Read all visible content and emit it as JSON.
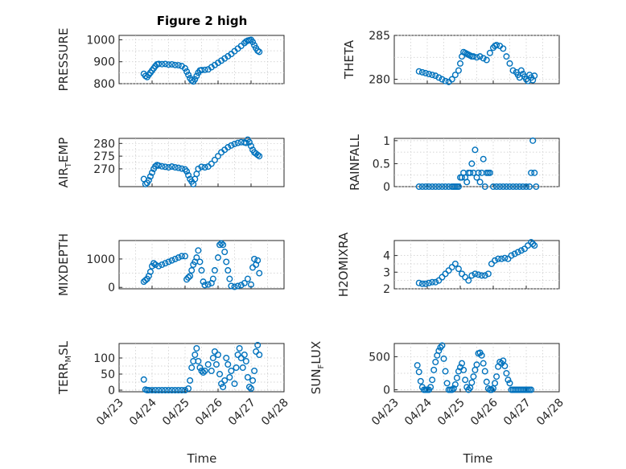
{
  "figure": {
    "title": "Figure 2 high",
    "xlabel": "Time"
  },
  "chart_data": [
    {
      "type": "scatter",
      "ylabel": "PRESSURE",
      "ylim": [
        800,
        1020
      ],
      "yticks": [
        "800",
        "900",
        "1000"
      ],
      "xticks": [
        "04/23",
        "04/24",
        "04/25",
        "04/26",
        "04/27",
        "04/28"
      ],
      "xlim": [
        0,
        5
      ],
      "show_xticks": false,
      "color": "#0072BD",
      "x": [
        0.75,
        0.8,
        0.85,
        0.9,
        0.95,
        1.0,
        1.05,
        1.1,
        1.15,
        1.2,
        1.3,
        1.4,
        1.5,
        1.6,
        1.7,
        1.8,
        1.9,
        2.0,
        2.05,
        2.1,
        2.15,
        2.2,
        2.25,
        2.3,
        2.35,
        2.4,
        2.45,
        2.5,
        2.6,
        2.7,
        2.8,
        2.9,
        3.0,
        3.1,
        3.2,
        3.3,
        3.4,
        3.5,
        3.6,
        3.7,
        3.8,
        3.85,
        3.9,
        3.95,
        4.0,
        4.05,
        4.1,
        4.15,
        4.2,
        4.25
      ],
      "y": [
        845,
        835,
        830,
        840,
        850,
        860,
        870,
        880,
        888,
        890,
        889,
        890,
        887,
        888,
        885,
        884,
        880,
        870,
        855,
        840,
        825,
        815,
        810,
        820,
        835,
        850,
        860,
        862,
        863,
        865,
        875,
        885,
        895,
        905,
        915,
        925,
        935,
        948,
        960,
        972,
        985,
        992,
        996,
        998,
        1000,
        990,
        975,
        962,
        950,
        945
      ]
    },
    {
      "type": "scatter",
      "ylabel": "THETA",
      "ylim": [
        279.5,
        285
      ],
      "yticks": [
        "280",
        "285"
      ],
      "xticks": [
        "04/23",
        "04/24",
        "04/25",
        "04/26",
        "04/27",
        "04/28"
      ],
      "xlim": [
        0,
        5
      ],
      "show_xticks": false,
      "color": "#0072BD",
      "x": [
        0.75,
        0.85,
        0.95,
        1.05,
        1.15,
        1.25,
        1.35,
        1.45,
        1.55,
        1.65,
        1.75,
        1.85,
        1.95,
        2.0,
        2.05,
        2.1,
        2.15,
        2.2,
        2.25,
        2.3,
        2.35,
        2.4,
        2.5,
        2.6,
        2.7,
        2.8,
        2.9,
        3.0,
        3.05,
        3.1,
        3.2,
        3.3,
        3.4,
        3.5,
        3.6,
        3.7,
        3.75,
        3.8,
        3.85,
        3.9,
        3.95,
        4.0,
        4.05,
        4.1,
        4.15,
        4.2,
        4.25
      ],
      "y": [
        280.9,
        280.8,
        280.7,
        280.6,
        280.5,
        280.4,
        280.2,
        280.0,
        279.8,
        279.7,
        280.0,
        280.5,
        281.0,
        281.8,
        282.6,
        283.1,
        283.0,
        282.9,
        282.8,
        282.7,
        282.6,
        282.6,
        282.5,
        282.6,
        282.4,
        282.2,
        283.0,
        283.6,
        283.8,
        283.9,
        283.8,
        283.5,
        282.6,
        281.8,
        281.0,
        280.8,
        280.5,
        280.2,
        281.0,
        280.6,
        280.3,
        280.0,
        279.8,
        280.5,
        280.2,
        279.9,
        280.4
      ]
    },
    {
      "type": "scatter",
      "ylabel": "AIR_TEMP",
      "ylim": [
        263,
        282
      ],
      "yticks": [
        "270",
        "275",
        "280"
      ],
      "xticks": [
        "04/23",
        "04/24",
        "04/25",
        "04/26",
        "04/27",
        "04/28"
      ],
      "xlim": [
        0,
        5
      ],
      "show_xticks": false,
      "color": "#0072BD",
      "x": [
        0.75,
        0.8,
        0.85,
        0.9,
        0.95,
        1.0,
        1.05,
        1.1,
        1.15,
        1.2,
        1.3,
        1.4,
        1.5,
        1.6,
        1.7,
        1.8,
        1.9,
        2.0,
        2.05,
        2.1,
        2.15,
        2.2,
        2.25,
        2.3,
        2.35,
        2.4,
        2.5,
        2.6,
        2.7,
        2.8,
        2.9,
        3.0,
        3.1,
        3.2,
        3.3,
        3.4,
        3.5,
        3.6,
        3.7,
        3.8,
        3.85,
        3.9,
        3.95,
        4.0,
        4.05,
        4.1,
        4.15,
        4.2,
        4.25
      ],
      "y": [
        266,
        264,
        264.5,
        265.5,
        267,
        268.5,
        270,
        271,
        271.5,
        271.3,
        271,
        270.8,
        270.6,
        270.9,
        270.6,
        270.4,
        270.1,
        269.8,
        269,
        267.5,
        266,
        265,
        264,
        266,
        268,
        270,
        270.8,
        270.6,
        270.9,
        272,
        273.5,
        275,
        276.5,
        277.5,
        278.5,
        279.2,
        279.8,
        280.2,
        280.5,
        280.4,
        280.2,
        281.5,
        280.5,
        279,
        277.5,
        276.5,
        276,
        275.5,
        275
      ]
    },
    {
      "type": "scatter",
      "ylabel": "RAINFALL",
      "ylim": [
        0,
        1.05
      ],
      "yticks": [
        "0",
        "0.5",
        "1"
      ],
      "xticks": [
        "04/23",
        "04/24",
        "04/25",
        "04/26",
        "04/27",
        "04/28"
      ],
      "xlim": [
        0,
        5
      ],
      "show_xticks": false,
      "color": "#0072BD",
      "x": [
        0.75,
        0.85,
        0.95,
        1.05,
        1.15,
        1.25,
        1.35,
        1.45,
        1.55,
        1.65,
        1.75,
        1.8,
        1.85,
        1.9,
        1.95,
        2.0,
        2.05,
        2.1,
        2.15,
        2.2,
        2.25,
        2.3,
        2.35,
        2.4,
        2.45,
        2.5,
        2.55,
        2.6,
        2.65,
        2.7,
        2.75,
        2.8,
        2.85,
        2.9,
        3.0,
        3.1,
        3.2,
        3.3,
        3.4,
        3.5,
        3.6,
        3.7,
        3.8,
        3.9,
        4.0,
        4.1,
        4.15,
        4.2,
        4.25,
        4.3
      ],
      "y": [
        0,
        0,
        0,
        0,
        0,
        0,
        0,
        0,
        0,
        0,
        0,
        0,
        0,
        0,
        0,
        0.2,
        0.2,
        0.3,
        0.2,
        0.1,
        0.3,
        0.3,
        0.5,
        0.3,
        0.8,
        0.2,
        0.3,
        0.1,
        0.3,
        0.6,
        0,
        0.3,
        0.3,
        0.3,
        0,
        0,
        0,
        0,
        0,
        0,
        0,
        0,
        0,
        0,
        0,
        0,
        0.3,
        1.0,
        0.3,
        0
      ]
    },
    {
      "type": "scatter",
      "ylabel": "MIXDEPTH",
      "ylim": [
        -50,
        1650
      ],
      "yticks": [
        "0",
        "1000"
      ],
      "xticks": [
        "04/23",
        "04/24",
        "04/25",
        "04/26",
        "04/27",
        "04/28"
      ],
      "xlim": [
        0,
        5
      ],
      "show_xticks": false,
      "color": "#0072BD",
      "x": [
        0.75,
        0.8,
        0.85,
        0.9,
        0.95,
        1.0,
        1.05,
        1.1,
        1.2,
        1.3,
        1.4,
        1.5,
        1.6,
        1.7,
        1.8,
        1.9,
        2.0,
        2.05,
        2.1,
        2.15,
        2.2,
        2.25,
        2.3,
        2.35,
        2.4,
        2.45,
        2.5,
        2.55,
        2.6,
        2.7,
        2.8,
        2.85,
        2.9,
        3.0,
        3.05,
        3.1,
        3.15,
        3.2,
        3.25,
        3.3,
        3.35,
        3.4,
        3.5,
        3.6,
        3.7,
        3.8,
        3.9,
        4.0,
        4.05,
        4.1,
        4.15,
        4.2,
        4.25
      ],
      "y": [
        200,
        250,
        300,
        400,
        550,
        750,
        850,
        800,
        750,
        800,
        850,
        900,
        950,
        1000,
        1050,
        1100,
        1100,
        280,
        350,
        400,
        600,
        800,
        900,
        1050,
        1300,
        900,
        600,
        200,
        80,
        100,
        150,
        300,
        600,
        1050,
        1500,
        1550,
        1500,
        1250,
        900,
        600,
        300,
        50,
        20,
        50,
        80,
        150,
        300,
        100,
        700,
        1000,
        800,
        950,
        500
      ]
    },
    {
      "type": "scatter",
      "ylabel": "H2OMIXRA",
      "ylim": [
        2,
        4.9
      ],
      "yticks": [
        "2",
        "3",
        "4"
      ],
      "xticks": [
        "04/23",
        "04/24",
        "04/25",
        "04/26",
        "04/27",
        "04/28"
      ],
      "xlim": [
        0,
        5
      ],
      "show_xticks": false,
      "color": "#0072BD",
      "x": [
        0.75,
        0.85,
        0.95,
        1.05,
        1.15,
        1.25,
        1.35,
        1.45,
        1.55,
        1.65,
        1.75,
        1.85,
        1.95,
        2.05,
        2.15,
        2.25,
        2.35,
        2.45,
        2.55,
        2.65,
        2.75,
        2.85,
        2.95,
        3.05,
        3.15,
        3.25,
        3.35,
        3.45,
        3.55,
        3.65,
        3.75,
        3.85,
        3.95,
        4.05,
        4.15,
        4.2,
        4.25
      ],
      "y": [
        2.35,
        2.3,
        2.3,
        2.35,
        2.4,
        2.4,
        2.5,
        2.7,
        2.9,
        3.1,
        3.3,
        3.5,
        3.2,
        2.9,
        2.7,
        2.5,
        2.8,
        2.9,
        2.85,
        2.8,
        2.8,
        2.9,
        3.5,
        3.7,
        3.8,
        3.8,
        3.85,
        3.8,
        4.0,
        4.1,
        4.2,
        4.3,
        4.4,
        4.6,
        4.8,
        4.7,
        4.6
      ]
    },
    {
      "type": "scatter",
      "ylabel": "TERR_MSL",
      "ylim": [
        -5,
        145
      ],
      "yticks": [
        "0",
        "50",
        "100"
      ],
      "xticks": [
        "04/23",
        "04/24",
        "04/25",
        "04/26",
        "04/27",
        "04/28"
      ],
      "xlim": [
        0,
        5
      ],
      "show_xticks": true,
      "color": "#0072BD",
      "x": [
        0.75,
        0.8,
        0.85,
        0.9,
        1.0,
        1.1,
        1.2,
        1.3,
        1.4,
        1.5,
        1.6,
        1.7,
        1.8,
        1.9,
        2.0,
        2.1,
        2.15,
        2.2,
        2.25,
        2.3,
        2.35,
        2.4,
        2.45,
        2.5,
        2.55,
        2.6,
        2.7,
        2.8,
        2.85,
        2.9,
        2.95,
        3.0,
        3.05,
        3.1,
        3.15,
        3.2,
        3.25,
        3.3,
        3.35,
        3.4,
        3.5,
        3.55,
        3.6,
        3.65,
        3.7,
        3.75,
        3.8,
        3.85,
        3.9,
        3.95,
        4.0,
        4.05,
        4.1,
        4.15,
        4.2,
        4.25
      ],
      "y": [
        33,
        2,
        0,
        0,
        0,
        0,
        0,
        0,
        0,
        0,
        0,
        0,
        0,
        0,
        0,
        5,
        30,
        70,
        90,
        110,
        130,
        90,
        70,
        60,
        55,
        60,
        80,
        60,
        100,
        120,
        80,
        110,
        50,
        20,
        10,
        30,
        100,
        80,
        40,
        60,
        20,
        70,
        110,
        130,
        100,
        70,
        110,
        90,
        40,
        10,
        5,
        30,
        60,
        120,
        140,
        110
      ]
    },
    {
      "type": "scatter",
      "ylabel": "SUN_FLUX",
      "ylim": [
        -30,
        700
      ],
      "yticks": [
        "0",
        "500"
      ],
      "xticks": [
        "04/23",
        "04/24",
        "04/25",
        "04/26",
        "04/27",
        "04/28"
      ],
      "xlim": [
        0,
        5
      ],
      "show_xticks": true,
      "color": "#0072BD",
      "x": [
        0.7,
        0.75,
        0.8,
        0.85,
        0.9,
        0.95,
        1.0,
        1.05,
        1.1,
        1.15,
        1.2,
        1.25,
        1.3,
        1.35,
        1.4,
        1.45,
        1.5,
        1.55,
        1.6,
        1.65,
        1.7,
        1.75,
        1.8,
        1.85,
        1.9,
        1.95,
        2.0,
        2.05,
        2.1,
        2.15,
        2.2,
        2.25,
        2.3,
        2.35,
        2.4,
        2.45,
        2.5,
        2.55,
        2.6,
        2.65,
        2.7,
        2.75,
        2.8,
        2.85,
        2.9,
        2.95,
        3.0,
        3.05,
        3.1,
        3.15,
        3.2,
        3.25,
        3.3,
        3.35,
        3.4,
        3.45,
        3.5,
        3.55,
        3.6,
        3.65,
        3.7,
        3.75,
        3.8,
        3.85,
        3.9,
        3.95,
        4.0,
        4.05,
        4.1,
        4.15
      ],
      "y": [
        370,
        270,
        130,
        40,
        0,
        0,
        0,
        0,
        40,
        150,
        300,
        420,
        520,
        590,
        640,
        670,
        470,
        280,
        100,
        0,
        0,
        0,
        20,
        80,
        180,
        280,
        340,
        400,
        300,
        150,
        40,
        0,
        30,
        110,
        200,
        300,
        380,
        550,
        560,
        520,
        400,
        280,
        120,
        20,
        0,
        0,
        20,
        100,
        200,
        350,
        420,
        400,
        440,
        360,
        250,
        150,
        100,
        0,
        0,
        0,
        0,
        0,
        0,
        0,
        0,
        0,
        0,
        0,
        0,
        0
      ]
    }
  ]
}
